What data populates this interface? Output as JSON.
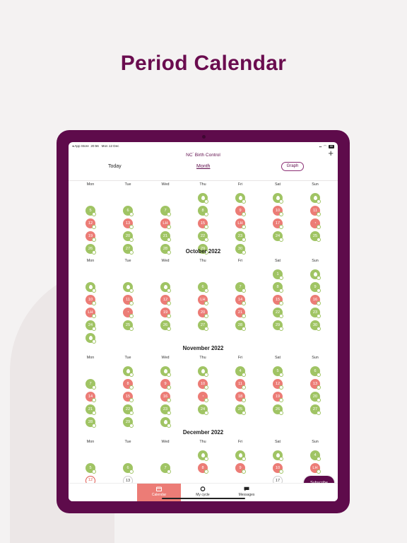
{
  "headline": "Period Calendar",
  "status_bar": {
    "carrier": "◂ App Store",
    "time": "20:56",
    "date": "Mon 12 Dec",
    "battery": "66"
  },
  "app": {
    "brand_prefix": "NC",
    "brand_name": "Birth Control",
    "add_icon": "plus-icon"
  },
  "nav": {
    "today": "Today",
    "month": "Month",
    "graph": "Graph"
  },
  "weekdays": [
    "Mon",
    "Tue",
    "Wed",
    "Thu",
    "Fri",
    "Sat",
    "Sun"
  ],
  "months": [
    {
      "title": "",
      "header_visible": true,
      "days": [
        {
          "d": "",
          "col": 3,
          "row": 0,
          "s": "g",
          "icon": "drop"
        },
        {
          "d": "",
          "col": 4,
          "row": 0,
          "s": "g",
          "icon": "drop"
        },
        {
          "d": "",
          "col": 5,
          "row": 0,
          "s": "g",
          "icon": "drop"
        },
        {
          "d": "",
          "col": 6,
          "row": 0,
          "s": "g",
          "icon": "drop"
        },
        {
          "d": "5",
          "col": 0,
          "row": 1,
          "s": "g"
        },
        {
          "d": "6",
          "col": 1,
          "row": 1,
          "s": "g"
        },
        {
          "d": "7",
          "col": 2,
          "row": 1,
          "s": "g"
        },
        {
          "d": "8",
          "col": 3,
          "row": 1,
          "s": "g"
        },
        {
          "d": "9",
          "col": 4,
          "row": 1,
          "s": "r"
        },
        {
          "d": "10",
          "col": 5,
          "row": 1,
          "s": "r"
        },
        {
          "d": "11",
          "col": 6,
          "row": 1,
          "s": "r"
        },
        {
          "d": "12",
          "col": 0,
          "row": 2,
          "s": "r"
        },
        {
          "d": "13",
          "col": 1,
          "row": 2,
          "s": "r"
        },
        {
          "d": "LH",
          "col": 2,
          "row": 2,
          "s": "r"
        },
        {
          "d": "15",
          "col": 3,
          "row": 2,
          "s": "r"
        },
        {
          "d": "LH",
          "col": 4,
          "row": 2,
          "s": "r"
        },
        {
          "d": "17",
          "col": 5,
          "row": 2,
          "s": "r"
        },
        {
          "d": "◔",
          "col": 6,
          "row": 2,
          "s": "r"
        },
        {
          "d": "19",
          "col": 0,
          "row": 3,
          "s": "r"
        },
        {
          "d": "20",
          "col": 1,
          "row": 3,
          "s": "g"
        },
        {
          "d": "21",
          "col": 2,
          "row": 3,
          "s": "g"
        },
        {
          "d": "22",
          "col": 3,
          "row": 3,
          "s": "g"
        },
        {
          "d": "23",
          "col": 4,
          "row": 3,
          "s": "g"
        },
        {
          "d": "24",
          "col": 5,
          "row": 3,
          "s": "g"
        },
        {
          "d": "25",
          "col": 6,
          "row": 3,
          "s": "g"
        },
        {
          "d": "26",
          "col": 0,
          "row": 4,
          "s": "g"
        },
        {
          "d": "27",
          "col": 1,
          "row": 4,
          "s": "g"
        },
        {
          "d": "28",
          "col": 2,
          "row": 4,
          "s": "g"
        },
        {
          "d": "29",
          "col": 3,
          "row": 4,
          "s": "g"
        },
        {
          "d": "30",
          "col": 4,
          "row": 4,
          "s": "g"
        }
      ]
    },
    {
      "title": "October 2022",
      "header_visible": true,
      "days": [
        {
          "d": "1",
          "col": 5,
          "row": 0,
          "s": "g"
        },
        {
          "d": "",
          "col": 6,
          "row": 0,
          "s": "g",
          "icon": "drop"
        },
        {
          "d": "",
          "col": 0,
          "row": 1,
          "s": "g",
          "icon": "drop"
        },
        {
          "d": "",
          "col": 1,
          "row": 1,
          "s": "g",
          "icon": "drop"
        },
        {
          "d": "",
          "col": 2,
          "row": 1,
          "s": "g",
          "icon": "drop"
        },
        {
          "d": "6",
          "col": 3,
          "row": 1,
          "s": "g"
        },
        {
          "d": "7",
          "col": 4,
          "row": 1,
          "s": "g"
        },
        {
          "d": "8",
          "col": 5,
          "row": 1,
          "s": "g"
        },
        {
          "d": "9",
          "col": 6,
          "row": 1,
          "s": "g"
        },
        {
          "d": "10",
          "col": 0,
          "row": 2,
          "s": "r"
        },
        {
          "d": "11",
          "col": 1,
          "row": 2,
          "s": "r"
        },
        {
          "d": "12",
          "col": 2,
          "row": 2,
          "s": "r"
        },
        {
          "d": "LH",
          "col": 3,
          "row": 2,
          "s": "r"
        },
        {
          "d": "14",
          "col": 4,
          "row": 2,
          "s": "r"
        },
        {
          "d": "15",
          "col": 5,
          "row": 2,
          "s": "r"
        },
        {
          "d": "16",
          "col": 6,
          "row": 2,
          "s": "r"
        },
        {
          "d": "LH",
          "col": 0,
          "row": 3,
          "s": "r"
        },
        {
          "d": "◔",
          "col": 1,
          "row": 3,
          "s": "r"
        },
        {
          "d": "19",
          "col": 2,
          "row": 3,
          "s": "r"
        },
        {
          "d": "20",
          "col": 3,
          "row": 3,
          "s": "r"
        },
        {
          "d": "21",
          "col": 4,
          "row": 3,
          "s": "r"
        },
        {
          "d": "22",
          "col": 5,
          "row": 3,
          "s": "g"
        },
        {
          "d": "23",
          "col": 6,
          "row": 3,
          "s": "g"
        },
        {
          "d": "24",
          "col": 0,
          "row": 4,
          "s": "g"
        },
        {
          "d": "25",
          "col": 1,
          "row": 4,
          "s": "g"
        },
        {
          "d": "26",
          "col": 2,
          "row": 4,
          "s": "g"
        },
        {
          "d": "27",
          "col": 3,
          "row": 4,
          "s": "g"
        },
        {
          "d": "28",
          "col": 4,
          "row": 4,
          "s": "g"
        },
        {
          "d": "29",
          "col": 5,
          "row": 4,
          "s": "g"
        },
        {
          "d": "30",
          "col": 6,
          "row": 4,
          "s": "g"
        },
        {
          "d": "",
          "col": 0,
          "row": 5,
          "s": "g",
          "icon": "drop"
        }
      ]
    },
    {
      "title": "November 2022",
      "header_visible": true,
      "days": [
        {
          "d": "",
          "col": 1,
          "row": 0,
          "s": "g",
          "icon": "drop"
        },
        {
          "d": "",
          "col": 2,
          "row": 0,
          "s": "g",
          "icon": "drop"
        },
        {
          "d": "",
          "col": 3,
          "row": 0,
          "s": "g",
          "icon": "drop"
        },
        {
          "d": "4",
          "col": 4,
          "row": 0,
          "s": "g"
        },
        {
          "d": "5",
          "col": 5,
          "row": 0,
          "s": "g"
        },
        {
          "d": "6",
          "col": 6,
          "row": 0,
          "s": "g"
        },
        {
          "d": "7",
          "col": 0,
          "row": 1,
          "s": "g"
        },
        {
          "d": "8",
          "col": 1,
          "row": 1,
          "s": "r"
        },
        {
          "d": "9",
          "col": 2,
          "row": 1,
          "s": "r"
        },
        {
          "d": "10",
          "col": 3,
          "row": 1,
          "s": "r"
        },
        {
          "d": "11",
          "col": 4,
          "row": 1,
          "s": "r"
        },
        {
          "d": "12",
          "col": 5,
          "row": 1,
          "s": "r"
        },
        {
          "d": "13",
          "col": 6,
          "row": 1,
          "s": "r"
        },
        {
          "d": "14",
          "col": 0,
          "row": 2,
          "s": "r"
        },
        {
          "d": "15",
          "col": 1,
          "row": 2,
          "s": "r"
        },
        {
          "d": "16",
          "col": 2,
          "row": 2,
          "s": "r"
        },
        {
          "d": "◔",
          "col": 3,
          "row": 2,
          "s": "r"
        },
        {
          "d": "18",
          "col": 4,
          "row": 2,
          "s": "r"
        },
        {
          "d": "19",
          "col": 5,
          "row": 2,
          "s": "r"
        },
        {
          "d": "20",
          "col": 6,
          "row": 2,
          "s": "g"
        },
        {
          "d": "21",
          "col": 0,
          "row": 3,
          "s": "g"
        },
        {
          "d": "22",
          "col": 1,
          "row": 3,
          "s": "g"
        },
        {
          "d": "23",
          "col": 2,
          "row": 3,
          "s": "g"
        },
        {
          "d": "24",
          "col": 3,
          "row": 3,
          "s": "g"
        },
        {
          "d": "25",
          "col": 4,
          "row": 3,
          "s": "g"
        },
        {
          "d": "26",
          "col": 5,
          "row": 3,
          "s": "g"
        },
        {
          "d": "27",
          "col": 6,
          "row": 3,
          "s": "g"
        },
        {
          "d": "28",
          "col": 0,
          "row": 4,
          "s": "g"
        },
        {
          "d": "29",
          "col": 1,
          "row": 4,
          "s": "g"
        },
        {
          "d": "",
          "col": 2,
          "row": 4,
          "s": "g",
          "icon": "drop"
        }
      ]
    },
    {
      "title": "December 2022",
      "header_visible": true,
      "days": [
        {
          "d": "",
          "col": 3,
          "row": 0,
          "s": "g",
          "icon": "drop"
        },
        {
          "d": "",
          "col": 4,
          "row": 0,
          "s": "g",
          "icon": "drop"
        },
        {
          "d": "",
          "col": 5,
          "row": 0,
          "s": "g",
          "icon": "drop"
        },
        {
          "d": "4",
          "col": 6,
          "row": 0,
          "s": "g"
        },
        {
          "d": "5",
          "col": 0,
          "row": 1,
          "s": "g"
        },
        {
          "d": "6",
          "col": 1,
          "row": 1,
          "s": "g"
        },
        {
          "d": "7",
          "col": 2,
          "row": 1,
          "s": "g"
        },
        {
          "d": "8",
          "col": 3,
          "row": 1,
          "s": "r"
        },
        {
          "d": "9",
          "col": 4,
          "row": 1,
          "s": "r"
        },
        {
          "d": "10",
          "col": 5,
          "row": 1,
          "s": "r"
        },
        {
          "d": "LH",
          "col": 6,
          "row": 1,
          "s": "r"
        },
        {
          "d": "12",
          "col": 0,
          "row": 2,
          "s": "to"
        },
        {
          "d": "13",
          "col": 1,
          "row": 2,
          "s": "o"
        },
        {
          "d": "17",
          "col": 5,
          "row": 2,
          "s": "o"
        }
      ]
    }
  ],
  "tabs": [
    {
      "label": "Calendar",
      "icon": "calendar-icon",
      "active": true
    },
    {
      "label": "My cycle",
      "icon": "cycle-icon",
      "active": false
    },
    {
      "label": "Messages",
      "icon": "messages-icon",
      "active": false
    }
  ],
  "subscribe_label": "Subscribe",
  "colors": {
    "brand": "#5e0b4b",
    "green": "#a0c464",
    "red": "#ec7c76"
  }
}
